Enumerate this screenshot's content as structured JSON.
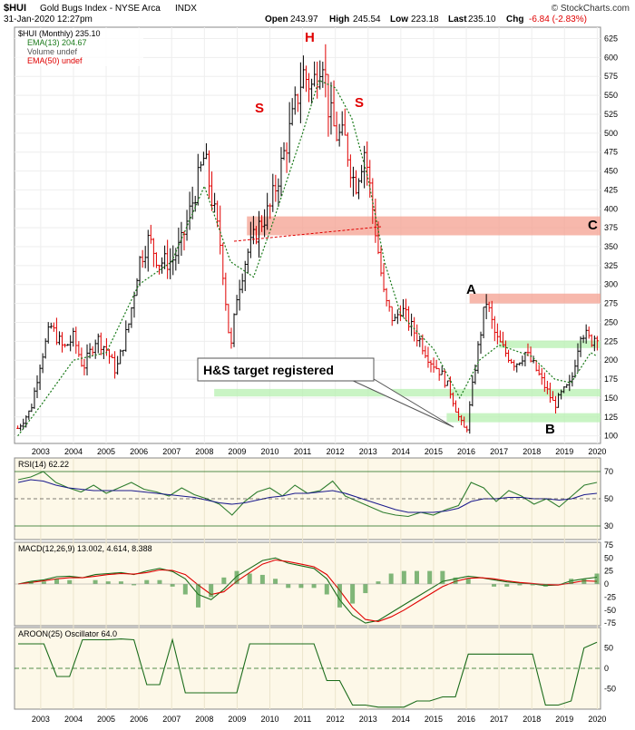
{
  "header": {
    "title_symbol": "$HUI",
    "title_name": "Gold Bugs Index - NYSE Arca",
    "title_type": "INDX",
    "brand": "© StockCharts.com",
    "date_time": "31-Jan-2020 12:27pm",
    "quote": {
      "open_label": "Open",
      "open": "243.97",
      "high_label": "High",
      "high": "245.54",
      "low_label": "Low",
      "low": "223.18",
      "last_label": "Last",
      "last": "235.10",
      "chg_label": "Chg",
      "chg": "-6.84 (-2.83%)"
    }
  },
  "legend": {
    "main": "$HUI (Monthly) 235.10",
    "ema13": "EMA(13) 204.67",
    "volume": "Volume undef",
    "ema50": "EMA(50) undef"
  },
  "annotations": {
    "left_shoulder": "S",
    "head": "H",
    "right_shoulder": "S",
    "wave_a": "A",
    "wave_b": "B",
    "wave_c": "C",
    "callout": "H&S target registered"
  },
  "colors": {
    "up_bar": "#000000",
    "down_bar": "#e00000",
    "ema13": "#1a7a1a",
    "resistance_zone": "#f4a090",
    "support_zone": "#b7f0b0",
    "annotation": "#e00000",
    "panel_bg": "#ffffff",
    "indicator_bg": "#fdf8e8",
    "rsi_line": "#2e7d2e",
    "rsi_ema": "#1a1a8c",
    "macd_line": "#1a6b1a",
    "macd_signal": "#e00000",
    "macd_hist": "#2e8b2e",
    "aroon": "#1a6b1a"
  },
  "chart_data": [
    {
      "type": "candlestick",
      "title": "$HUI (Monthly) 235.10",
      "ylim": [
        90,
        640
      ],
      "y_ticks": [
        100,
        125,
        150,
        175,
        200,
        225,
        250,
        275,
        300,
        325,
        350,
        375,
        400,
        425,
        450,
        475,
        500,
        525,
        550,
        575,
        600,
        625
      ],
      "x_ticks": [
        "2003",
        "2004",
        "2005",
        "2006",
        "2007",
        "2008",
        "2009",
        "2010",
        "2011",
        "2012",
        "2013",
        "2014",
        "2015",
        "2016",
        "2017",
        "2018",
        "2019",
        "2020"
      ],
      "x_range": [
        2002.2,
        2020.1
      ],
      "series": [
        {
          "name": "$HUI (Monthly)",
          "x": [
            2002.3,
            2002.7,
            2003.0,
            2003.3,
            2003.7,
            2004.0,
            2004.3,
            2004.7,
            2005.0,
            2005.3,
            2005.7,
            2006.0,
            2006.3,
            2006.6,
            2007.0,
            2007.3,
            2007.7,
            2008.0,
            2008.2,
            2008.5,
            2008.8,
            2009.0,
            2009.3,
            2009.7,
            2010.0,
            2010.3,
            2010.7,
            2011.0,
            2011.3,
            2011.6,
            2011.8,
            2012.0,
            2012.3,
            2012.6,
            2012.9,
            2013.2,
            2013.5,
            2013.8,
            2014.0,
            2014.3,
            2014.6,
            2014.9,
            2015.2,
            2015.5,
            2015.8,
            2016.0,
            2016.3,
            2016.6,
            2016.9,
            2017.2,
            2017.5,
            2017.8,
            2018.1,
            2018.4,
            2018.7,
            2018.9,
            2019.2,
            2019.5,
            2019.8,
            2020.0
          ],
          "values": [
            110,
            135,
            200,
            245,
            215,
            230,
            190,
            230,
            215,
            185,
            250,
            330,
            360,
            330,
            330,
            355,
            420,
            470,
            420,
            350,
            210,
            290,
            340,
            380,
            400,
            450,
            520,
            580,
            560,
            610,
            530,
            500,
            490,
            430,
            480,
            380,
            280,
            250,
            270,
            245,
            225,
            200,
            185,
            160,
            120,
            105,
            200,
            280,
            230,
            210,
            195,
            210,
            190,
            165,
            140,
            155,
            170,
            240,
            225,
            235
          ]
        },
        {
          "name": "EMA(13)",
          "x": [
            2002.3,
            2003.0,
            2004.0,
            2005.0,
            2006.0,
            2007.0,
            2008.0,
            2008.8,
            2009.5,
            2010.0,
            2011.0,
            2011.5,
            2012.0,
            2012.5,
            2013.0,
            2013.5,
            2014.0,
            2015.0,
            2015.8,
            2016.4,
            2017.0,
            2018.0,
            2018.7,
            2019.2,
            2019.8,
            2020.0
          ],
          "values": [
            100,
            140,
            200,
            210,
            300,
            330,
            430,
            330,
            310,
            370,
            500,
            570,
            560,
            520,
            440,
            330,
            260,
            215,
            150,
            200,
            220,
            205,
            175,
            170,
            210,
            205
          ]
        }
      ],
      "zones": [
        {
          "kind": "resistance",
          "y": [
            365,
            390
          ],
          "x": [
            2009.3,
            2020.1
          ]
        },
        {
          "kind": "resistance",
          "y": [
            275,
            288
          ],
          "x": [
            2016.1,
            2020.1
          ]
        },
        {
          "kind": "support",
          "y": [
            216,
            226
          ],
          "x": [
            2017.0,
            2020.1
          ]
        },
        {
          "kind": "support",
          "y": [
            152,
            162
          ],
          "x": [
            2008.3,
            2020.1
          ]
        },
        {
          "kind": "support",
          "y": [
            118,
            130
          ],
          "x": [
            2015.4,
            2020.1
          ]
        }
      ]
    },
    {
      "type": "line",
      "title": "RSI(14) 62.22",
      "series": [
        {
          "name": "RSI(14)",
          "values": [
            64,
            66,
            70,
            62,
            58,
            55,
            60,
            54,
            58,
            62,
            57,
            55,
            52,
            58,
            53,
            50,
            46,
            38,
            48,
            55,
            58,
            52,
            60,
            54,
            56,
            63,
            52,
            48,
            44,
            40,
            38,
            37,
            40,
            38,
            42,
            45,
            62,
            58,
            48,
            56,
            52,
            46,
            50,
            44,
            52,
            60,
            62
          ]
        },
        {
          "name": "EMA(20)",
          "values": [
            62,
            64,
            63,
            60,
            58,
            57,
            56,
            56,
            56,
            56,
            55,
            54,
            53,
            52,
            51,
            49,
            47,
            46,
            47,
            49,
            51,
            52,
            54,
            54,
            55,
            56,
            54,
            51,
            48,
            45,
            42,
            40,
            40,
            40,
            41,
            43,
            48,
            50,
            50,
            51,
            51,
            50,
            50,
            49,
            50,
            53,
            54
          ]
        }
      ],
      "ylim": [
        20,
        80
      ],
      "y_ticks": [
        30,
        50,
        70
      ]
    },
    {
      "type": "line",
      "title": "MACD(12,26,9) 13.002, 4.614, 8.388",
      "series": [
        {
          "name": "MACD",
          "values": [
            0,
            5,
            8,
            14,
            15,
            12,
            18,
            20,
            22,
            18,
            25,
            30,
            24,
            10,
            -20,
            -30,
            -10,
            15,
            30,
            45,
            50,
            40,
            35,
            30,
            10,
            -30,
            -60,
            -75,
            -70,
            -55,
            -40,
            -25,
            -10,
            5,
            10,
            15,
            12,
            8,
            4,
            2,
            0,
            -3,
            -2,
            6,
            10,
            13
          ]
        },
        {
          "name": "Signal",
          "values": [
            0,
            3,
            6,
            10,
            12,
            12,
            15,
            18,
            20,
            19,
            22,
            27,
            26,
            18,
            -2,
            -20,
            -15,
            5,
            22,
            38,
            46,
            43,
            38,
            33,
            18,
            -12,
            -45,
            -68,
            -72,
            -63,
            -50,
            -35,
            -20,
            -5,
            5,
            11,
            12,
            10,
            6,
            3,
            1,
            -1,
            -2,
            2,
            6,
            5
          ]
        }
      ],
      "ylim": [
        -80,
        80
      ],
      "y_ticks": [
        -75,
        -50,
        -25,
        0,
        25,
        50,
        75
      ]
    },
    {
      "type": "line",
      "title": "AROON(25) Oscillator 64.0",
      "series": [
        {
          "name": "AROON(25) Oscillator",
          "values": [
            60,
            60,
            60,
            -20,
            -20,
            70,
            70,
            70,
            72,
            70,
            -40,
            -40,
            70,
            -60,
            -60,
            -60,
            -60,
            -60,
            60,
            60,
            60,
            60,
            60,
            60,
            -30,
            -30,
            -90,
            -90,
            -95,
            -95,
            -95,
            -80,
            -80,
            -70,
            -70,
            35,
            35,
            35,
            35,
            35,
            35,
            -90,
            -90,
            -80,
            50,
            64
          ]
        }
      ],
      "ylim": [
        -100,
        100
      ],
      "y_ticks": [
        -50,
        0,
        50
      ]
    }
  ]
}
